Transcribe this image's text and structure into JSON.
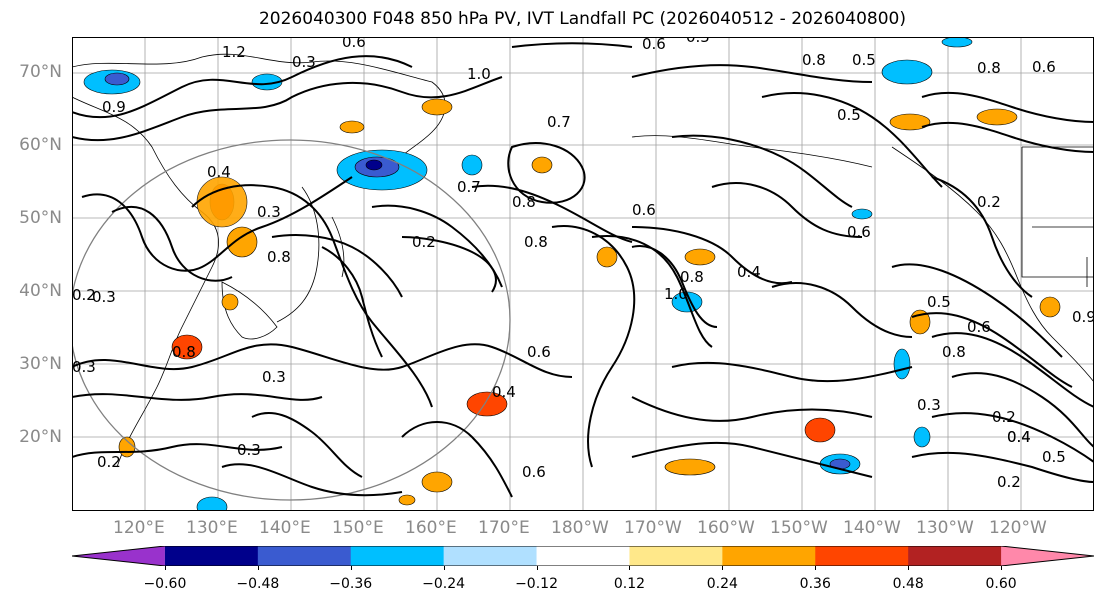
{
  "title": "2026040300 F048 850 hPa PV, IVT Landfall PC (2026040512 - 2026040800)",
  "lat_labels": [
    "70°N",
    "60°N",
    "50°N",
    "40°N",
    "30°N",
    "20°N"
  ],
  "lon_labels": [
    "120°E",
    "130°E",
    "140°E",
    "150°E",
    "160°E",
    "170°E",
    "180°W",
    "170°W",
    "160°W",
    "150°W",
    "140°W",
    "130°W",
    "120°W"
  ],
  "colorbar": {
    "colors": [
      "#9932cc",
      "#00008b",
      "#3a5bd0",
      "#00bfff",
      "#b0e0ff",
      "#ffffff",
      "#ffe88a",
      "#ffa500",
      "#ff4500",
      "#b22222",
      "#ff88aa"
    ],
    "ticks": [
      "−0.60",
      "−0.48",
      "−0.36",
      "−0.24",
      "−0.12",
      "0.12",
      "0.24",
      "0.36",
      "0.48",
      "0.60"
    ]
  },
  "contour_labels": [
    "1.2",
    "0.9",
    "0.3",
    "0.6",
    "0.5",
    "0.6",
    "0.8",
    "0.8",
    "0.5",
    "0.6",
    "1.0",
    "0.7",
    "0.4",
    "0.3",
    "0.8",
    "0.2",
    "0.5",
    "0.7",
    "0.8",
    "0.6",
    "0.8",
    "0.6",
    "0.2",
    "0.4",
    "0.8",
    "1.0",
    "0.4",
    "0.3",
    "0.8",
    "0.6",
    "0.5",
    "0.9",
    "0.8",
    "0.3",
    "0.6",
    "0.4",
    "0.3",
    "0.2",
    "0.6",
    "0.2",
    "0.3",
    "0.2",
    "0.4",
    "0.5",
    "0.2",
    "0.3"
  ]
}
